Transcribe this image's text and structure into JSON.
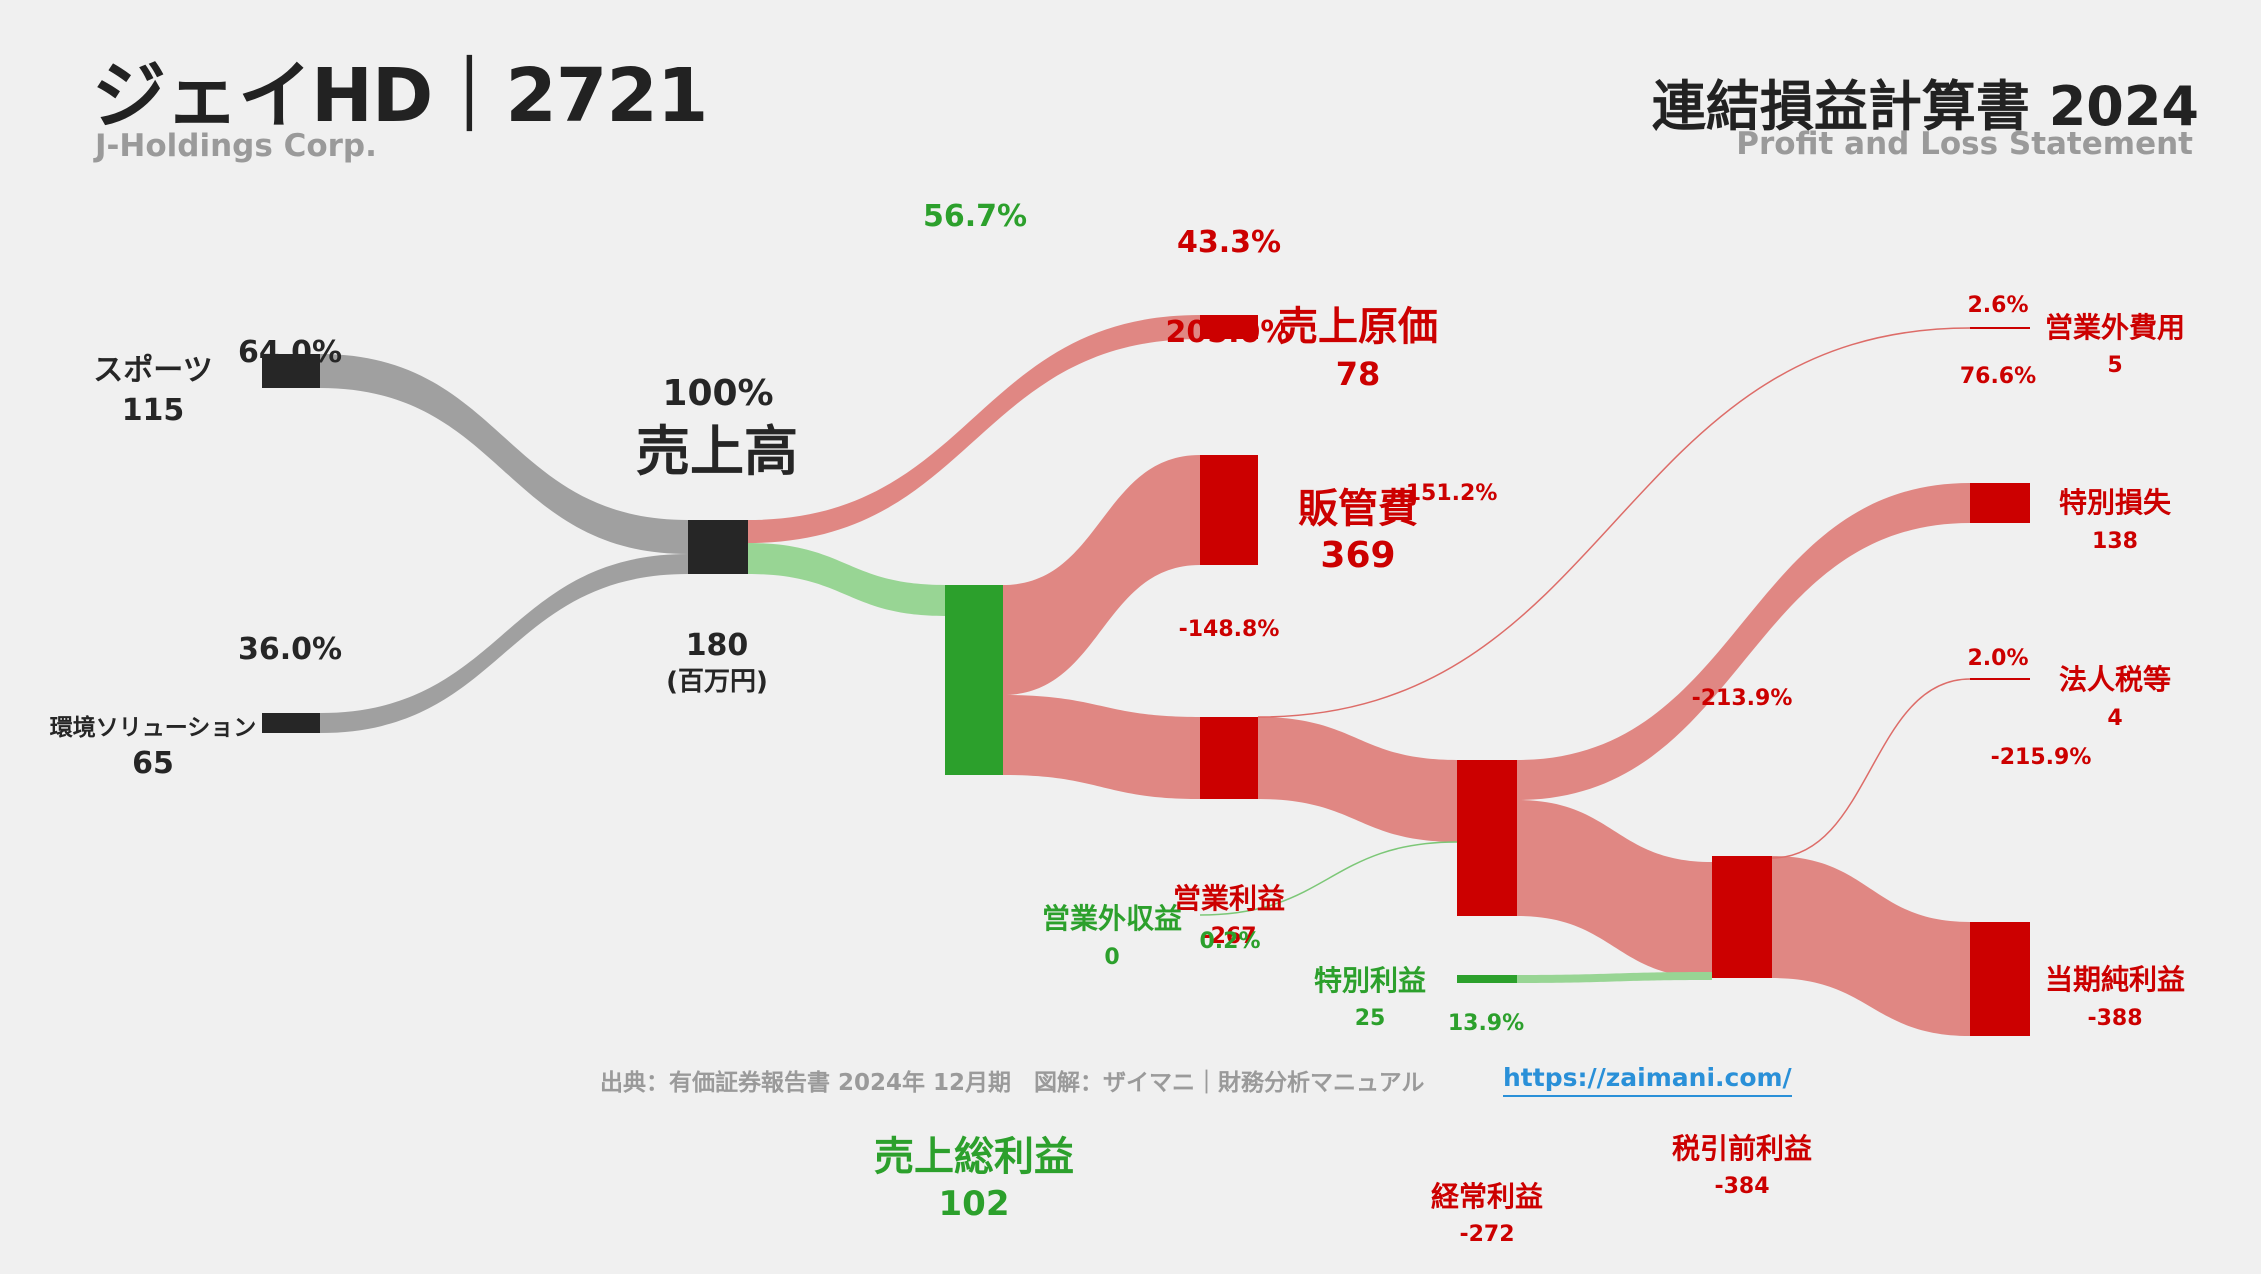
{
  "header": {
    "title": "ジェイHD｜2721",
    "subtitle": "J-Holdings Corp.",
    "right_title": "連結損益計算書 2024",
    "right_subtitle": "Profit and Loss Statement"
  },
  "footer": {
    "source": "出典：有価証券報告書 2024年 12月期　図解：ザイマニ｜財務分析マニュアル",
    "url": "https://zaimani.com/"
  },
  "unit_label": "(百万円)",
  "colors": {
    "background": "#f0f0f0",
    "node_dark": "#262626",
    "segment_flow": "#a0a0a0",
    "profit": "#2ca02c",
    "profit_flow": "#98d594",
    "cost": "#cc0000",
    "cost_flow": "#e08783"
  },
  "chart_data": {
    "type": "sankey",
    "unit": "百万円",
    "nodes": [
      {
        "id": "sports",
        "label": "スポーツ",
        "value": "115",
        "pct": "64.0%"
      },
      {
        "id": "env",
        "label": "環境ソリューション",
        "value": "65",
        "pct": "36.0%"
      },
      {
        "id": "revenue",
        "label": "売上高",
        "value": "180",
        "pct": "100%"
      },
      {
        "id": "cogs",
        "label": "売上原価",
        "value": "78",
        "pct": "43.3%"
      },
      {
        "id": "gross",
        "label": "売上総利益",
        "value": "102",
        "pct": "56.7%"
      },
      {
        "id": "sga",
        "label": "販管費",
        "value": "369",
        "pct": "205.0%"
      },
      {
        "id": "op",
        "label": "営業利益",
        "value": "-267",
        "pct": "-148.8%"
      },
      {
        "id": "nonop_inc",
        "label": "営業外収益",
        "value": "0",
        "pct": "0.2%"
      },
      {
        "id": "nonop_exp",
        "label": "営業外費用",
        "value": "5",
        "pct": "2.6%"
      },
      {
        "id": "ordinary",
        "label": "経常利益",
        "value": "-272",
        "pct": "-151.2%"
      },
      {
        "id": "sp_gain",
        "label": "特別利益",
        "value": "25",
        "pct": "13.9%"
      },
      {
        "id": "sp_loss",
        "label": "特別損失",
        "value": "138",
        "pct": "76.6%"
      },
      {
        "id": "pretax",
        "label": "税引前利益",
        "value": "-384",
        "pct": "-213.9%"
      },
      {
        "id": "tax",
        "label": "法人税等",
        "value": "4",
        "pct": "2.0%"
      },
      {
        "id": "net",
        "label": "当期純利益",
        "value": "-388",
        "pct": "-215.9%"
      }
    ],
    "links": [
      {
        "source": "sports",
        "target": "revenue",
        "value": 115
      },
      {
        "source": "env",
        "target": "revenue",
        "value": 65
      },
      {
        "source": "revenue",
        "target": "cogs",
        "value": 78
      },
      {
        "source": "revenue",
        "target": "gross",
        "value": 102
      },
      {
        "source": "gross",
        "target": "sga",
        "value": 102
      },
      {
        "source": "op",
        "target": "sga",
        "value": 267
      },
      {
        "source": "op",
        "target": "ordinary",
        "value": 267
      },
      {
        "source": "nonop_inc",
        "target": "ordinary",
        "value": 0
      },
      {
        "source": "ordinary",
        "target": "nonop_exp",
        "value": 5
      },
      {
        "source": "pretax",
        "target": "ordinary",
        "value": 272
      },
      {
        "source": "pretax",
        "target": "sp_loss",
        "value": 138
      },
      {
        "source": "sp_gain",
        "target": "pretax",
        "value": 25
      },
      {
        "source": "pretax",
        "target": "tax",
        "value": 4
      },
      {
        "source": "net",
        "target": "pretax",
        "value": 388
      }
    ]
  }
}
